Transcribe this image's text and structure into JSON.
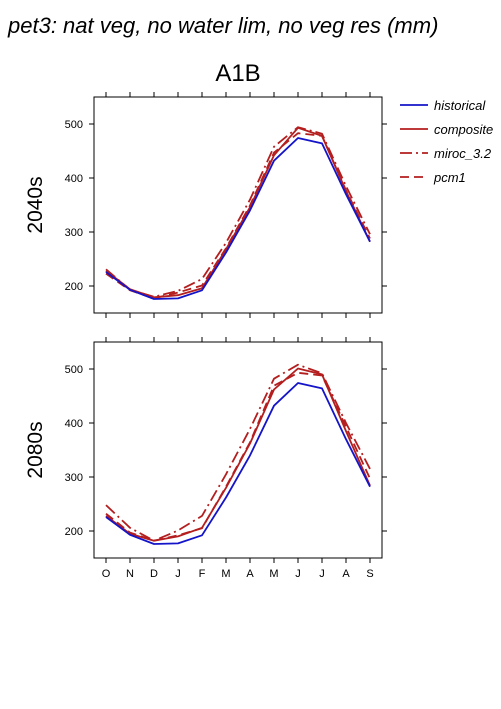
{
  "page_title": "pet3: nat veg, no water lim, no veg res (mm)",
  "scenario": "A1B",
  "legend": [
    {
      "name": "historical",
      "color": "#1414c8",
      "dash": "none"
    },
    {
      "name": "composite",
      "color": "#b41e1e",
      "dash": "none"
    },
    {
      "name": "miroc_3.2",
      "color": "#b41e1e",
      "dash": "12,4,2,4"
    },
    {
      "name": "pcm1",
      "color": "#b41e1e",
      "dash": "9,5"
    }
  ],
  "chart_data": [
    {
      "type": "line",
      "panel": "2040s",
      "ylabel": "2040s",
      "x": [
        "O",
        "N",
        "D",
        "J",
        "F",
        "M",
        "A",
        "M",
        "J",
        "J",
        "A",
        "S"
      ],
      "y_ticks": [
        200,
        300,
        400,
        500
      ],
      "ylim": [
        150,
        550
      ],
      "series": [
        {
          "name": "historical",
          "values": [
            226,
            193,
            176,
            177,
            192,
            262,
            340,
            432,
            474,
            464,
            370,
            282
          ]
        },
        {
          "name": "composite",
          "values": [
            228,
            194,
            179,
            183,
            196,
            268,
            346,
            442,
            493,
            478,
            376,
            282
          ]
        },
        {
          "name": "miroc_3.2",
          "values": [
            231,
            193,
            180,
            191,
            213,
            280,
            360,
            458,
            494,
            482,
            385,
            296
          ]
        },
        {
          "name": "pcm1",
          "values": [
            223,
            192,
            177,
            188,
            201,
            270,
            349,
            447,
            483,
            478,
            377,
            288
          ]
        }
      ]
    },
    {
      "type": "line",
      "panel": "2080s",
      "ylabel": "2080s",
      "x": [
        "O",
        "N",
        "D",
        "J",
        "F",
        "M",
        "A",
        "M",
        "J",
        "J",
        "A",
        "S"
      ],
      "y_ticks": [
        200,
        300,
        400,
        500
      ],
      "ylim": [
        150,
        550
      ],
      "series": [
        {
          "name": "historical",
          "values": [
            226,
            193,
            176,
            177,
            192,
            262,
            340,
            432,
            474,
            464,
            370,
            282
          ]
        },
        {
          "name": "composite",
          "values": [
            228,
            195,
            182,
            190,
            206,
            280,
            362,
            462,
            501,
            490,
            385,
            284
          ]
        },
        {
          "name": "miroc_3.2",
          "values": [
            248,
            206,
            182,
            201,
            228,
            305,
            389,
            482,
            508,
            492,
            400,
            315
          ]
        },
        {
          "name": "pcm1",
          "values": [
            232,
            197,
            182,
            192,
            205,
            282,
            364,
            469,
            493,
            488,
            393,
            297
          ]
        }
      ]
    }
  ]
}
